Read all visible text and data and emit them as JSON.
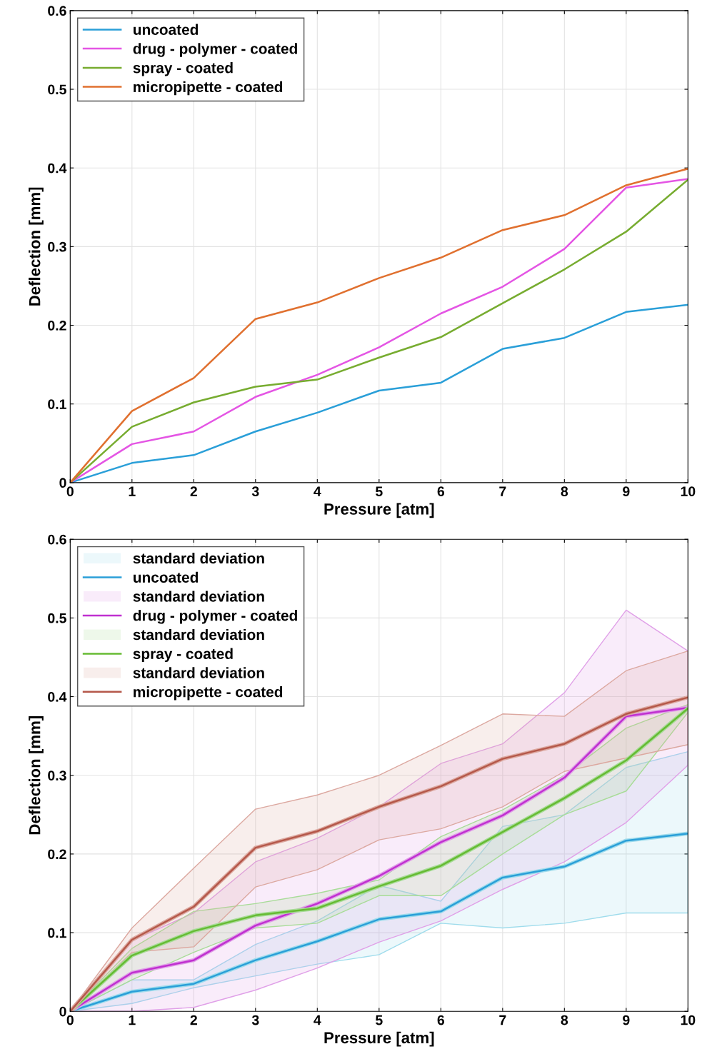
{
  "chart_data": [
    {
      "type": "line",
      "xlabel": "Pressure [atm]",
      "ylabel": "Deflection [mm]",
      "x": [
        0,
        1,
        2,
        3,
        4,
        5,
        6,
        7,
        8,
        9,
        10
      ],
      "xlim": [
        0,
        10
      ],
      "ylim": [
        0,
        0.6
      ],
      "xticks": [
        0,
        1,
        2,
        3,
        4,
        5,
        6,
        7,
        8,
        9,
        10
      ],
      "yticks": [
        0,
        0.1,
        0.2,
        0.3,
        0.4,
        0.5,
        0.6
      ],
      "grid": true,
      "legend": "top left",
      "series": [
        {
          "name": "uncoated",
          "color": "#2a9fd8",
          "values": [
            0,
            0.025,
            0.035,
            0.065,
            0.089,
            0.117,
            0.127,
            0.17,
            0.184,
            0.217,
            0.226
          ]
        },
        {
          "name": "drug - polymer - coated",
          "color": "#e455e4",
          "values": [
            0,
            0.049,
            0.065,
            0.109,
            0.137,
            0.172,
            0.215,
            0.249,
            0.297,
            0.375,
            0.386
          ]
        },
        {
          "name": "spray - coated",
          "color": "#77ac30",
          "values": [
            0,
            0.071,
            0.102,
            0.122,
            0.131,
            0.159,
            0.185,
            0.228,
            0.271,
            0.319,
            0.385
          ]
        },
        {
          "name": "micropipette - coated",
          "color": "#e0702f",
          "values": [
            0,
            0.091,
            0.133,
            0.208,
            0.229,
            0.26,
            0.286,
            0.321,
            0.34,
            0.378,
            0.399
          ]
        }
      ]
    },
    {
      "type": "line",
      "xlabel": "Pressure [atm]",
      "ylabel": "Deflection [mm]",
      "x": [
        0,
        1,
        2,
        3,
        4,
        5,
        6,
        7,
        8,
        9,
        10
      ],
      "xlim": [
        0,
        10
      ],
      "ylim": [
        0,
        0.6
      ],
      "xticks": [
        0,
        1,
        2,
        3,
        4,
        5,
        6,
        7,
        8,
        9,
        10
      ],
      "yticks": [
        0,
        0.1,
        0.2,
        0.3,
        0.4,
        0.5,
        0.6
      ],
      "grid": true,
      "legend": "top left",
      "series": [
        {
          "name": "standard deviation",
          "color": "#9fdcec",
          "values": [
            0,
            0.025,
            0.035,
            0.065,
            0.089,
            0.117,
            0.127,
            0.17,
            0.184,
            0.217,
            0.226
          ],
          "lower": [
            0,
            0.01,
            0.03,
            0.045,
            0.06,
            0.072,
            0.112,
            0.106,
            0.112,
            0.125,
            0.125
          ],
          "upper": [
            0,
            0.04,
            0.04,
            0.085,
            0.115,
            0.16,
            0.14,
            0.235,
            0.25,
            0.31,
            0.33
          ]
        },
        {
          "name": "uncoated",
          "color": "#2a9fd8",
          "values": [
            0,
            0.025,
            0.035,
            0.065,
            0.089,
            0.117,
            0.127,
            0.17,
            0.184,
            0.217,
            0.226
          ]
        },
        {
          "name": "standard deviation",
          "color": "#e0a0e8",
          "values": [
            0,
            0.049,
            0.065,
            0.109,
            0.137,
            0.172,
            0.215,
            0.249,
            0.297,
            0.375,
            0.386
          ],
          "lower": [
            0,
            0.0,
            0.005,
            0.027,
            0.055,
            0.088,
            0.115,
            0.155,
            0.19,
            0.24,
            0.313
          ],
          "upper": [
            0,
            0.09,
            0.125,
            0.19,
            0.22,
            0.26,
            0.315,
            0.34,
            0.405,
            0.51,
            0.458
          ]
        },
        {
          "name": "drug - polymer - coated",
          "color": "#c030d0",
          "values": [
            0,
            0.049,
            0.065,
            0.109,
            0.137,
            0.172,
            0.215,
            0.249,
            0.297,
            0.375,
            0.386
          ]
        },
        {
          "name": "standard deviation",
          "color": "#a8dc98",
          "values": [
            0,
            0.071,
            0.102,
            0.122,
            0.131,
            0.159,
            0.185,
            0.228,
            0.271,
            0.319,
            0.385
          ],
          "lower": [
            0,
            0.04,
            0.075,
            0.106,
            0.112,
            0.147,
            0.147,
            0.2,
            0.25,
            0.28,
            0.38
          ],
          "upper": [
            0,
            0.08,
            0.127,
            0.137,
            0.15,
            0.167,
            0.222,
            0.256,
            0.3,
            0.36,
            0.39
          ]
        },
        {
          "name": "spray - coated",
          "color": "#66bb33",
          "values": [
            0,
            0.071,
            0.102,
            0.122,
            0.131,
            0.159,
            0.185,
            0.228,
            0.271,
            0.319,
            0.385
          ]
        },
        {
          "name": "standard deviation",
          "color": "#dca8a0",
          "values": [
            0,
            0.091,
            0.133,
            0.208,
            0.229,
            0.26,
            0.286,
            0.321,
            0.34,
            0.378,
            0.399
          ],
          "lower": [
            0,
            0.075,
            0.082,
            0.158,
            0.18,
            0.218,
            0.232,
            0.26,
            0.305,
            0.322,
            0.339
          ],
          "upper": [
            0,
            0.106,
            0.182,
            0.257,
            0.275,
            0.3,
            0.338,
            0.378,
            0.375,
            0.433,
            0.458
          ]
        },
        {
          "name": "micropipette - coated",
          "color": "#b5584a",
          "values": [
            0,
            0.091,
            0.133,
            0.208,
            0.229,
            0.26,
            0.286,
            0.321,
            0.34,
            0.378,
            0.399
          ]
        }
      ]
    }
  ]
}
